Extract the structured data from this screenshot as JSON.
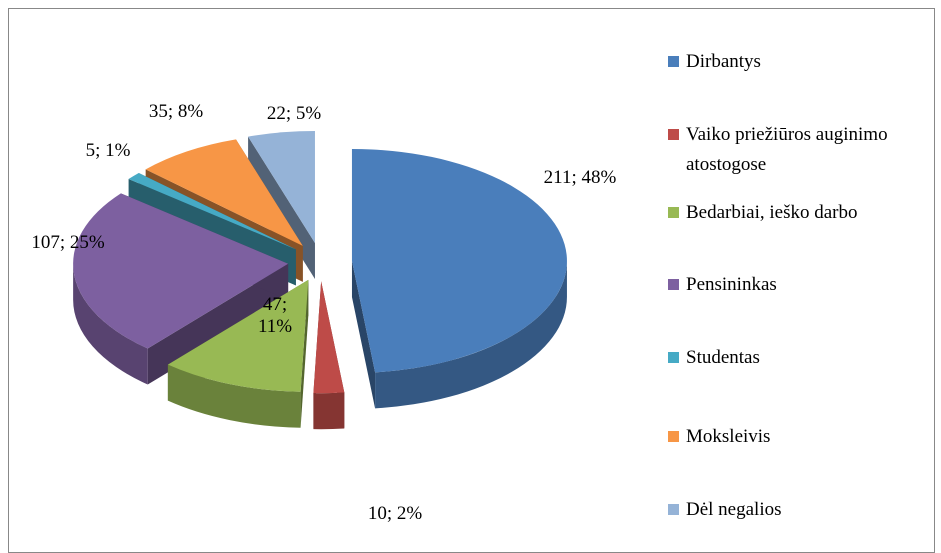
{
  "chart_data": {
    "type": "pie3d",
    "categories": [
      "Dirbantys",
      "Vaiko priežiūros auginimo atostogose",
      "Bedarbiai, ieško darbo",
      "Pensininkas",
      "Studentas",
      "Moksleivis",
      "Dėl negalios"
    ],
    "values": [
      211,
      10,
      47,
      107,
      5,
      35,
      22
    ],
    "value_labels": [
      "211; 48%",
      "10; 2%",
      "47; 11%",
      "107; 25%",
      "5; 1%",
      "35; 8%",
      "22; 5%"
    ],
    "colors": [
      "#4a7ebb",
      "#be4b48",
      "#98b954",
      "#7d60a0",
      "#46aac5",
      "#f79646",
      "#95b3d7"
    ],
    "legend": "right"
  }
}
